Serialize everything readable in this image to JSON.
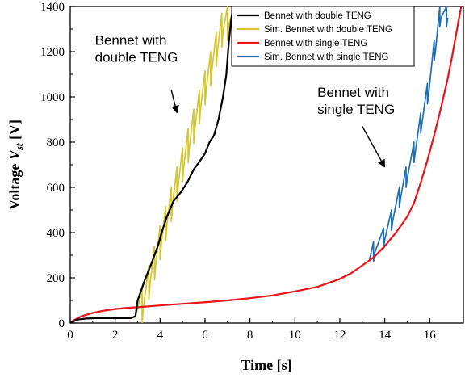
{
  "chart_data": {
    "type": "line",
    "xlabel": "Time [s]",
    "ylabel_prefix": "Voltage ",
    "ylabel_var": "V",
    "ylabel_sub": "st",
    "ylabel_suffix": " [V]",
    "xlim": [
      0,
      17.5
    ],
    "ylim": [
      0,
      1400
    ],
    "xticks": [
      0,
      2,
      4,
      6,
      8,
      10,
      12,
      14,
      16
    ],
    "yticks": [
      0,
      200,
      400,
      600,
      800,
      1000,
      1200,
      1400
    ],
    "grid": false,
    "legend_position": "top-right",
    "series": [
      {
        "name": "Bennet with double TENG",
        "color": "#000000",
        "points": [
          [
            0,
            0
          ],
          [
            0.3,
            15
          ],
          [
            0.7,
            20
          ],
          [
            1.2,
            22
          ],
          [
            2.0,
            22
          ],
          [
            2.7,
            22
          ],
          [
            2.9,
            30
          ],
          [
            3.0,
            100
          ],
          [
            3.3,
            185
          ],
          [
            3.6,
            260
          ],
          [
            3.9,
            340
          ],
          [
            4.1,
            410
          ],
          [
            4.3,
            470
          ],
          [
            4.6,
            540
          ],
          [
            4.9,
            575
          ],
          [
            5.2,
            620
          ],
          [
            5.5,
            680
          ],
          [
            5.8,
            720
          ],
          [
            6.0,
            750
          ],
          [
            6.2,
            800
          ],
          [
            6.4,
            830
          ],
          [
            6.6,
            900
          ],
          [
            6.8,
            1000
          ],
          [
            6.95,
            1100
          ],
          [
            7.05,
            1230
          ],
          [
            7.15,
            1330
          ],
          [
            7.25,
            1400
          ]
        ]
      },
      {
        "name": "Sim. Bennet with double TENG",
        "color": "#d4c62b",
        "sawtooth": true,
        "start": [
          2.9,
          22
        ],
        "teeth": [
          [
            3.2,
            150
          ],
          [
            3.5,
            255
          ],
          [
            3.75,
            340
          ],
          [
            4.0,
            430
          ],
          [
            4.25,
            515
          ],
          [
            4.5,
            600
          ],
          [
            4.75,
            690
          ],
          [
            5.0,
            775
          ],
          [
            5.25,
            860
          ],
          [
            5.5,
            945
          ],
          [
            5.75,
            1030
          ],
          [
            6.0,
            1115
          ],
          [
            6.25,
            1200
          ],
          [
            6.5,
            1285
          ],
          [
            6.75,
            1370
          ],
          [
            7.0,
            1400
          ],
          [
            7.3,
            1400
          ],
          [
            7.6,
            1400
          ],
          [
            7.9,
            1400
          ]
        ],
        "drop": 150
      },
      {
        "name": "Bennet with single TENG",
        "color": "#e8141a",
        "points": [
          [
            0,
            0
          ],
          [
            0.2,
            15
          ],
          [
            0.5,
            30
          ],
          [
            1,
            45
          ],
          [
            1.5,
            55
          ],
          [
            2,
            62
          ],
          [
            2.5,
            67
          ],
          [
            3,
            70
          ],
          [
            4,
            78
          ],
          [
            5,
            85
          ],
          [
            6,
            92
          ],
          [
            7,
            100
          ],
          [
            8,
            110
          ],
          [
            9,
            122
          ],
          [
            10,
            140
          ],
          [
            11,
            160
          ],
          [
            12,
            195
          ],
          [
            12.5,
            220
          ],
          [
            13,
            255
          ],
          [
            13.5,
            290
          ],
          [
            14,
            340
          ],
          [
            14.5,
            400
          ],
          [
            15,
            470
          ],
          [
            15.3,
            530
          ],
          [
            15.6,
            620
          ],
          [
            15.9,
            720
          ],
          [
            16.2,
            830
          ],
          [
            16.5,
            950
          ],
          [
            16.8,
            1080
          ],
          [
            17.0,
            1180
          ],
          [
            17.2,
            1290
          ],
          [
            17.4,
            1400
          ]
        ]
      },
      {
        "name": "Sim. Bennet with single TENG",
        "color": "#1f6fb2",
        "sawtooth": true,
        "start": [
          13.3,
          270
        ],
        "teeth": [
          [
            13.5,
            360
          ],
          [
            13.95,
            420
          ],
          [
            14.3,
            500
          ],
          [
            14.65,
            600
          ],
          [
            14.95,
            690
          ],
          [
            15.3,
            800
          ],
          [
            15.6,
            930
          ],
          [
            15.9,
            1060
          ],
          [
            16.2,
            1250
          ],
          [
            16.45,
            1400
          ],
          [
            16.75,
            1400
          ]
        ],
        "drop": 90
      }
    ],
    "annotations": [
      {
        "lines": [
          "Bennet with",
          "double TENG"
        ],
        "text_at": [
          1.1,
          1230
        ],
        "arrow_from": [
          4.5,
          1030
        ],
        "arrow_to": [
          4.75,
          930
        ]
      },
      {
        "lines": [
          "Bennet with",
          "single TENG"
        ],
        "text_at": [
          11.0,
          1000
        ],
        "arrow_from": [
          13.0,
          870
        ],
        "arrow_to": [
          14.0,
          690
        ]
      }
    ]
  }
}
